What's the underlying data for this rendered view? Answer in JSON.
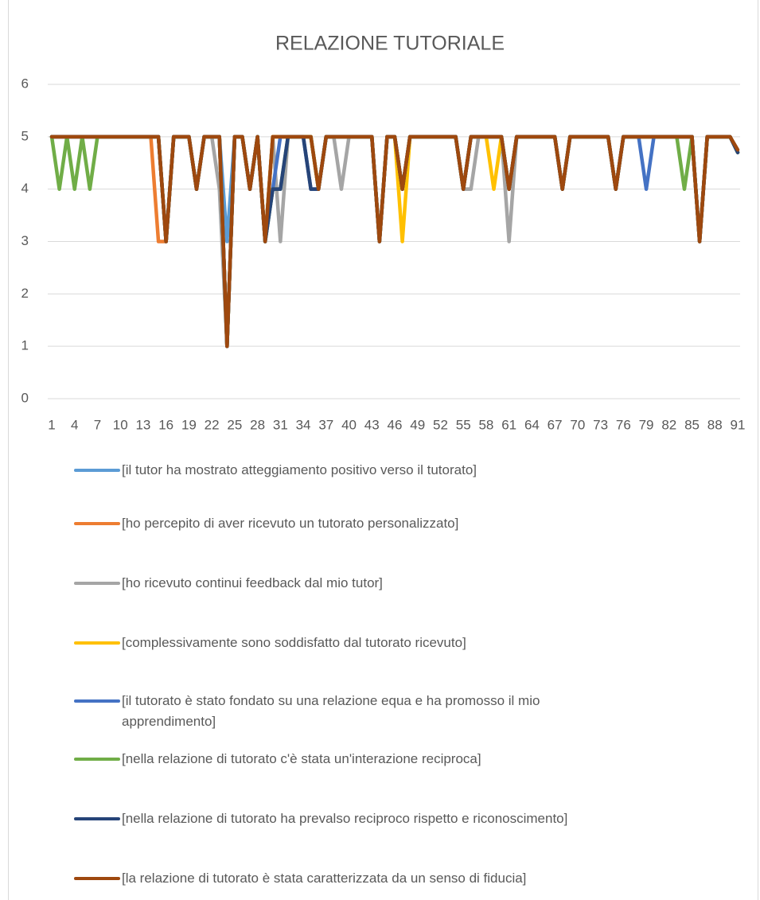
{
  "chart_data": {
    "type": "line",
    "title": "RELAZIONE TUTORIALE",
    "categories": [
      1,
      null,
      null,
      4,
      null,
      null,
      7,
      null,
      null,
      10,
      null,
      null,
      13,
      null,
      null,
      16,
      null,
      null,
      19,
      null,
      null,
      22,
      null,
      null,
      25,
      null,
      null,
      28,
      null,
      null,
      31,
      null,
      null,
      34,
      null,
      null,
      37,
      null,
      null,
      40,
      null,
      null,
      43,
      null,
      null,
      46,
      null,
      null,
      49,
      null,
      null,
      52,
      null,
      null,
      55,
      null,
      null,
      58,
      null,
      null,
      61,
      null,
      null,
      64,
      null,
      null,
      67,
      null,
      null,
      70,
      null,
      null,
      73,
      null,
      null,
      76,
      null,
      null,
      79,
      null,
      null,
      82,
      null,
      null,
      85,
      null,
      null,
      88,
      null,
      null,
      91
    ],
    "ylim": [
      0,
      6
    ],
    "yticks": [
      0,
      1,
      2,
      3,
      4,
      5,
      6
    ],
    "grid": true,
    "legend": "bottom",
    "series": [
      {
        "name": "[il tutor ha mostrato atteggiamento positivo verso il tutorato]",
        "color": "#5b9bd5",
        "values": [
          5,
          5,
          5,
          5,
          5,
          5,
          5,
          5,
          5,
          5,
          5,
          5,
          5,
          5,
          5,
          3,
          5,
          5,
          5,
          4,
          5,
          5,
          5,
          3,
          5,
          5,
          4,
          5,
          3,
          5,
          5,
          5,
          5,
          5,
          5,
          4,
          5,
          5,
          5,
          5,
          5,
          5,
          5,
          3,
          5,
          5,
          4,
          5,
          5,
          5,
          5,
          5,
          5,
          5,
          4,
          5,
          5,
          5,
          5,
          5,
          4,
          5,
          5,
          5,
          5,
          5,
          5,
          4,
          5,
          5,
          5,
          5,
          5,
          5,
          4,
          5,
          5,
          5,
          5,
          5,
          5,
          5,
          5,
          5,
          5,
          3,
          5,
          5,
          5,
          5,
          4.7
        ]
      },
      {
        "name": "[ho percepito di aver ricevuto un tutorato personalizzato]",
        "color": "#ed7d31",
        "values": [
          5,
          5,
          5,
          5,
          5,
          5,
          5,
          5,
          5,
          5,
          5,
          5,
          5,
          5,
          3,
          3,
          5,
          5,
          5,
          4,
          5,
          5,
          5,
          1,
          5,
          5,
          4,
          5,
          3,
          5,
          5,
          5,
          5,
          5,
          5,
          4,
          5,
          5,
          5,
          5,
          5,
          5,
          5,
          3,
          5,
          5,
          4,
          5,
          5,
          5,
          5,
          5,
          5,
          5,
          4,
          5,
          5,
          5,
          5,
          5,
          4,
          5,
          5,
          5,
          5,
          5,
          5,
          4,
          5,
          5,
          5,
          5,
          5,
          5,
          4,
          5,
          5,
          5,
          5,
          5,
          5,
          5,
          5,
          5,
          5,
          3,
          5,
          5,
          5,
          5,
          4.7
        ]
      },
      {
        "name": "[ho ricevuto continui feedback dal mio tutor]",
        "color": "#a5a5a5",
        "values": [
          5,
          5,
          5,
          5,
          5,
          5,
          5,
          5,
          5,
          5,
          5,
          5,
          5,
          5,
          5,
          3,
          5,
          5,
          5,
          4,
          5,
          5,
          4,
          1,
          5,
          5,
          4,
          5,
          3,
          5,
          3,
          5,
          5,
          5,
          5,
          4,
          5,
          5,
          4,
          5,
          5,
          5,
          5,
          3,
          5,
          5,
          4,
          5,
          5,
          5,
          5,
          5,
          5,
          5,
          4,
          4,
          5,
          5,
          5,
          5,
          3,
          5,
          5,
          5,
          5,
          5,
          5,
          4,
          5,
          5,
          5,
          5,
          5,
          5,
          4,
          5,
          5,
          5,
          5,
          5,
          5,
          5,
          5,
          5,
          5,
          3,
          5,
          5,
          5,
          5,
          4.7
        ]
      },
      {
        "name": "[complessivamente sono soddisfatto dal tutorato ricevuto]",
        "color": "#ffc000",
        "values": [
          5,
          5,
          5,
          5,
          5,
          5,
          5,
          5,
          5,
          5,
          5,
          5,
          5,
          5,
          5,
          3,
          5,
          5,
          5,
          4,
          5,
          5,
          5,
          1,
          5,
          5,
          4,
          5,
          3,
          5,
          5,
          5,
          5,
          5,
          5,
          4,
          5,
          5,
          5,
          5,
          5,
          5,
          5,
          3,
          5,
          5,
          3,
          5,
          5,
          5,
          5,
          5,
          5,
          5,
          4,
          5,
          5,
          5,
          4,
          5,
          4,
          5,
          5,
          5,
          5,
          5,
          5,
          4,
          5,
          5,
          5,
          5,
          5,
          5,
          4,
          5,
          5,
          5,
          5,
          5,
          5,
          5,
          5,
          5,
          5,
          3,
          5,
          5,
          5,
          5,
          4.7
        ]
      },
      {
        "name": "[il tutorato è stato fondato su una relazione equa e ha promosso il mio apprendimento]",
        "color": "#4472c4",
        "values": [
          5,
          5,
          5,
          5,
          5,
          5,
          5,
          5,
          5,
          5,
          5,
          5,
          5,
          5,
          5,
          3,
          5,
          5,
          5,
          4,
          5,
          5,
          5,
          1,
          5,
          5,
          4,
          5,
          3,
          4,
          5,
          5,
          5,
          5,
          4,
          4,
          5,
          5,
          5,
          5,
          5,
          5,
          5,
          3,
          5,
          5,
          4,
          5,
          5,
          5,
          5,
          5,
          5,
          5,
          4,
          5,
          5,
          5,
          5,
          5,
          4,
          5,
          5,
          5,
          5,
          5,
          5,
          4,
          5,
          5,
          5,
          5,
          5,
          5,
          4,
          5,
          5,
          5,
          4,
          5,
          5,
          5,
          5,
          5,
          5,
          3,
          5,
          5,
          5,
          5,
          4.7
        ]
      },
      {
        "name": "[nella relazione di tutorato c'è stata un'interazione reciproca]",
        "color": "#70ad47",
        "values": [
          5,
          4,
          5,
          4,
          5,
          4,
          5,
          5,
          5,
          5,
          5,
          5,
          5,
          5,
          5,
          3,
          5,
          5,
          5,
          4,
          5,
          5,
          5,
          1,
          5,
          5,
          4,
          5,
          3,
          4,
          4,
          5,
          5,
          5,
          5,
          4,
          5,
          5,
          5,
          5,
          5,
          5,
          5,
          3,
          5,
          5,
          4,
          5,
          5,
          5,
          5,
          5,
          5,
          5,
          4,
          5,
          5,
          5,
          5,
          5,
          4,
          5,
          5,
          5,
          5,
          5,
          5,
          4,
          5,
          5,
          5,
          5,
          5,
          5,
          4,
          5,
          5,
          5,
          5,
          5,
          5,
          5,
          5,
          4,
          5,
          3,
          5,
          5,
          5,
          5,
          4.7
        ]
      },
      {
        "name": "[nella relazione di tutorato ha prevalso reciproco rispetto e riconoscimento]",
        "color": "#264478",
        "values": [
          5,
          5,
          5,
          5,
          5,
          5,
          5,
          5,
          5,
          5,
          5,
          5,
          5,
          5,
          5,
          3,
          5,
          5,
          5,
          4,
          5,
          5,
          5,
          1,
          5,
          5,
          4,
          5,
          3,
          4,
          4,
          5,
          5,
          5,
          4,
          4,
          5,
          5,
          5,
          5,
          5,
          5,
          5,
          3,
          5,
          5,
          4,
          5,
          5,
          5,
          5,
          5,
          5,
          5,
          4,
          5,
          5,
          5,
          5,
          5,
          4,
          5,
          5,
          5,
          5,
          5,
          5,
          4,
          5,
          5,
          5,
          5,
          5,
          5,
          4,
          5,
          5,
          5,
          5,
          5,
          5,
          5,
          5,
          5,
          5,
          3,
          5,
          5,
          5,
          5,
          4.7
        ]
      },
      {
        "name": "[la relazione di tutorato è stata caratterizzata da un senso di fiducia]",
        "color": "#9e480e",
        "values": [
          5,
          5,
          5,
          5,
          5,
          5,
          5,
          5,
          5,
          5,
          5,
          5,
          5,
          5,
          5,
          3,
          5,
          5,
          5,
          4,
          5,
          5,
          5,
          1,
          5,
          5,
          4,
          5,
          3,
          5,
          5,
          5,
          5,
          5,
          5,
          4,
          5,
          5,
          5,
          5,
          5,
          5,
          5,
          3,
          5,
          5,
          4,
          5,
          5,
          5,
          5,
          5,
          5,
          5,
          4,
          5,
          5,
          5,
          5,
          5,
          4,
          5,
          5,
          5,
          5,
          5,
          5,
          4,
          5,
          5,
          5,
          5,
          5,
          5,
          4,
          5,
          5,
          5,
          5,
          5,
          5,
          5,
          5,
          5,
          5,
          3,
          5,
          5,
          5,
          5,
          4.75
        ]
      }
    ]
  }
}
